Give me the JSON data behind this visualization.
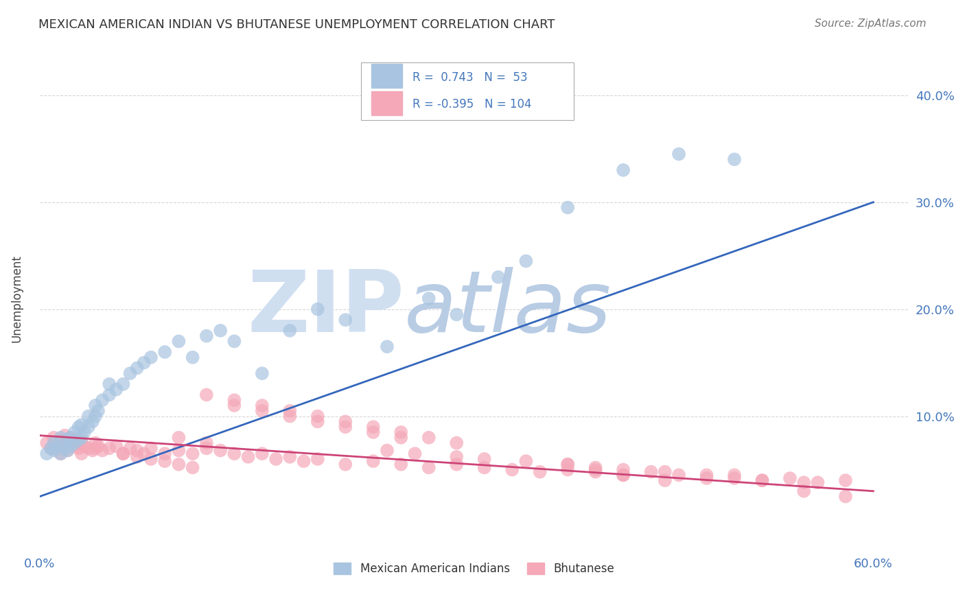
{
  "title": "MEXICAN AMERICAN INDIAN VS BHUTANESE UNEMPLOYMENT CORRELATION CHART",
  "source": "Source: ZipAtlas.com",
  "ylabel": "Unemployment",
  "xlim": [
    0.0,
    0.625
  ],
  "ylim": [
    -0.025,
    0.445
  ],
  "yticks": [
    0.1,
    0.2,
    0.3,
    0.4
  ],
  "ytick_labels": [
    "10.0%",
    "20.0%",
    "30.0%",
    "40.0%"
  ],
  "xticks": [
    0.0,
    0.6
  ],
  "xtick_labels": [
    "0.0%",
    "60.0%"
  ],
  "blue_R": "0.743",
  "blue_N": "53",
  "pink_R": "-0.395",
  "pink_N": "104",
  "blue_color": "#a8c4e0",
  "pink_color": "#f4a8b8",
  "blue_line_color": "#3366bb",
  "pink_line_color": "#cc4477",
  "watermark_zip": "ZIP",
  "watermark_atlas": "atlas",
  "watermark_color_zip": "#d0dff0",
  "watermark_color_atlas": "#b8cce4",
  "legend_label_blue": "Mexican American Indians",
  "legend_label_pink": "Bhutanese",
  "blue_scatter_x": [
    0.005,
    0.008,
    0.01,
    0.01,
    0.012,
    0.015,
    0.015,
    0.018,
    0.02,
    0.02,
    0.022,
    0.022,
    0.025,
    0.025,
    0.028,
    0.028,
    0.03,
    0.03,
    0.032,
    0.035,
    0.035,
    0.038,
    0.04,
    0.04,
    0.042,
    0.045,
    0.05,
    0.05,
    0.055,
    0.06,
    0.065,
    0.07,
    0.075,
    0.08,
    0.09,
    0.1,
    0.11,
    0.12,
    0.13,
    0.14,
    0.16,
    0.18,
    0.2,
    0.22,
    0.25,
    0.28,
    0.3,
    0.33,
    0.35,
    0.38,
    0.42,
    0.46,
    0.5
  ],
  "blue_scatter_y": [
    0.065,
    0.07,
    0.068,
    0.075,
    0.072,
    0.065,
    0.08,
    0.07,
    0.068,
    0.078,
    0.072,
    0.08,
    0.075,
    0.085,
    0.078,
    0.09,
    0.08,
    0.092,
    0.085,
    0.09,
    0.1,
    0.095,
    0.1,
    0.11,
    0.105,
    0.115,
    0.12,
    0.13,
    0.125,
    0.13,
    0.14,
    0.145,
    0.15,
    0.155,
    0.16,
    0.17,
    0.155,
    0.175,
    0.18,
    0.17,
    0.14,
    0.18,
    0.2,
    0.19,
    0.165,
    0.21,
    0.195,
    0.23,
    0.245,
    0.295,
    0.33,
    0.345,
    0.34
  ],
  "pink_scatter_x": [
    0.005,
    0.008,
    0.01,
    0.012,
    0.015,
    0.015,
    0.018,
    0.02,
    0.02,
    0.022,
    0.025,
    0.025,
    0.028,
    0.03,
    0.03,
    0.032,
    0.035,
    0.038,
    0.04,
    0.04,
    0.042,
    0.045,
    0.05,
    0.055,
    0.06,
    0.065,
    0.07,
    0.075,
    0.08,
    0.09,
    0.1,
    0.11,
    0.12,
    0.13,
    0.14,
    0.15,
    0.16,
    0.17,
    0.18,
    0.19,
    0.2,
    0.22,
    0.24,
    0.26,
    0.28,
    0.3,
    0.32,
    0.34,
    0.36,
    0.38,
    0.4,
    0.42,
    0.44,
    0.46,
    0.48,
    0.5,
    0.52,
    0.54,
    0.56,
    0.58,
    0.25,
    0.27,
    0.3,
    0.32,
    0.35,
    0.38,
    0.4,
    0.42,
    0.45,
    0.48,
    0.5,
    0.52,
    0.55,
    0.2,
    0.22,
    0.24,
    0.26,
    0.28,
    0.3,
    0.14,
    0.16,
    0.18,
    0.2,
    0.22,
    0.24,
    0.26,
    0.12,
    0.14,
    0.16,
    0.18,
    0.1,
    0.12,
    0.06,
    0.07,
    0.08,
    0.09,
    0.1,
    0.11,
    0.55,
    0.58,
    0.38,
    0.4,
    0.42,
    0.45
  ],
  "pink_scatter_y": [
    0.075,
    0.07,
    0.08,
    0.072,
    0.078,
    0.065,
    0.082,
    0.075,
    0.068,
    0.08,
    0.078,
    0.072,
    0.07,
    0.075,
    0.065,
    0.072,
    0.07,
    0.068,
    0.075,
    0.07,
    0.072,
    0.068,
    0.07,
    0.072,
    0.065,
    0.07,
    0.068,
    0.065,
    0.07,
    0.065,
    0.068,
    0.065,
    0.07,
    0.068,
    0.065,
    0.062,
    0.065,
    0.06,
    0.062,
    0.058,
    0.06,
    0.055,
    0.058,
    0.055,
    0.052,
    0.055,
    0.052,
    0.05,
    0.048,
    0.05,
    0.048,
    0.045,
    0.048,
    0.045,
    0.042,
    0.045,
    0.04,
    0.042,
    0.038,
    0.04,
    0.068,
    0.065,
    0.062,
    0.06,
    0.058,
    0.055,
    0.052,
    0.05,
    0.048,
    0.045,
    0.042,
    0.04,
    0.038,
    0.1,
    0.095,
    0.09,
    0.085,
    0.08,
    0.075,
    0.11,
    0.105,
    0.1,
    0.095,
    0.09,
    0.085,
    0.08,
    0.12,
    0.115,
    0.11,
    0.105,
    0.08,
    0.075,
    0.065,
    0.062,
    0.06,
    0.058,
    0.055,
    0.052,
    0.03,
    0.025,
    0.055,
    0.05,
    0.045,
    0.04
  ],
  "blue_trend_x": [
    0.0,
    0.6
  ],
  "blue_trend_y": [
    0.025,
    0.3
  ],
  "pink_trend_x": [
    0.0,
    0.6
  ],
  "pink_trend_y": [
    0.082,
    0.03
  ],
  "background_color": "#ffffff",
  "grid_color": "#cccccc",
  "title_color": "#333333",
  "axis_color": "#4477bb"
}
